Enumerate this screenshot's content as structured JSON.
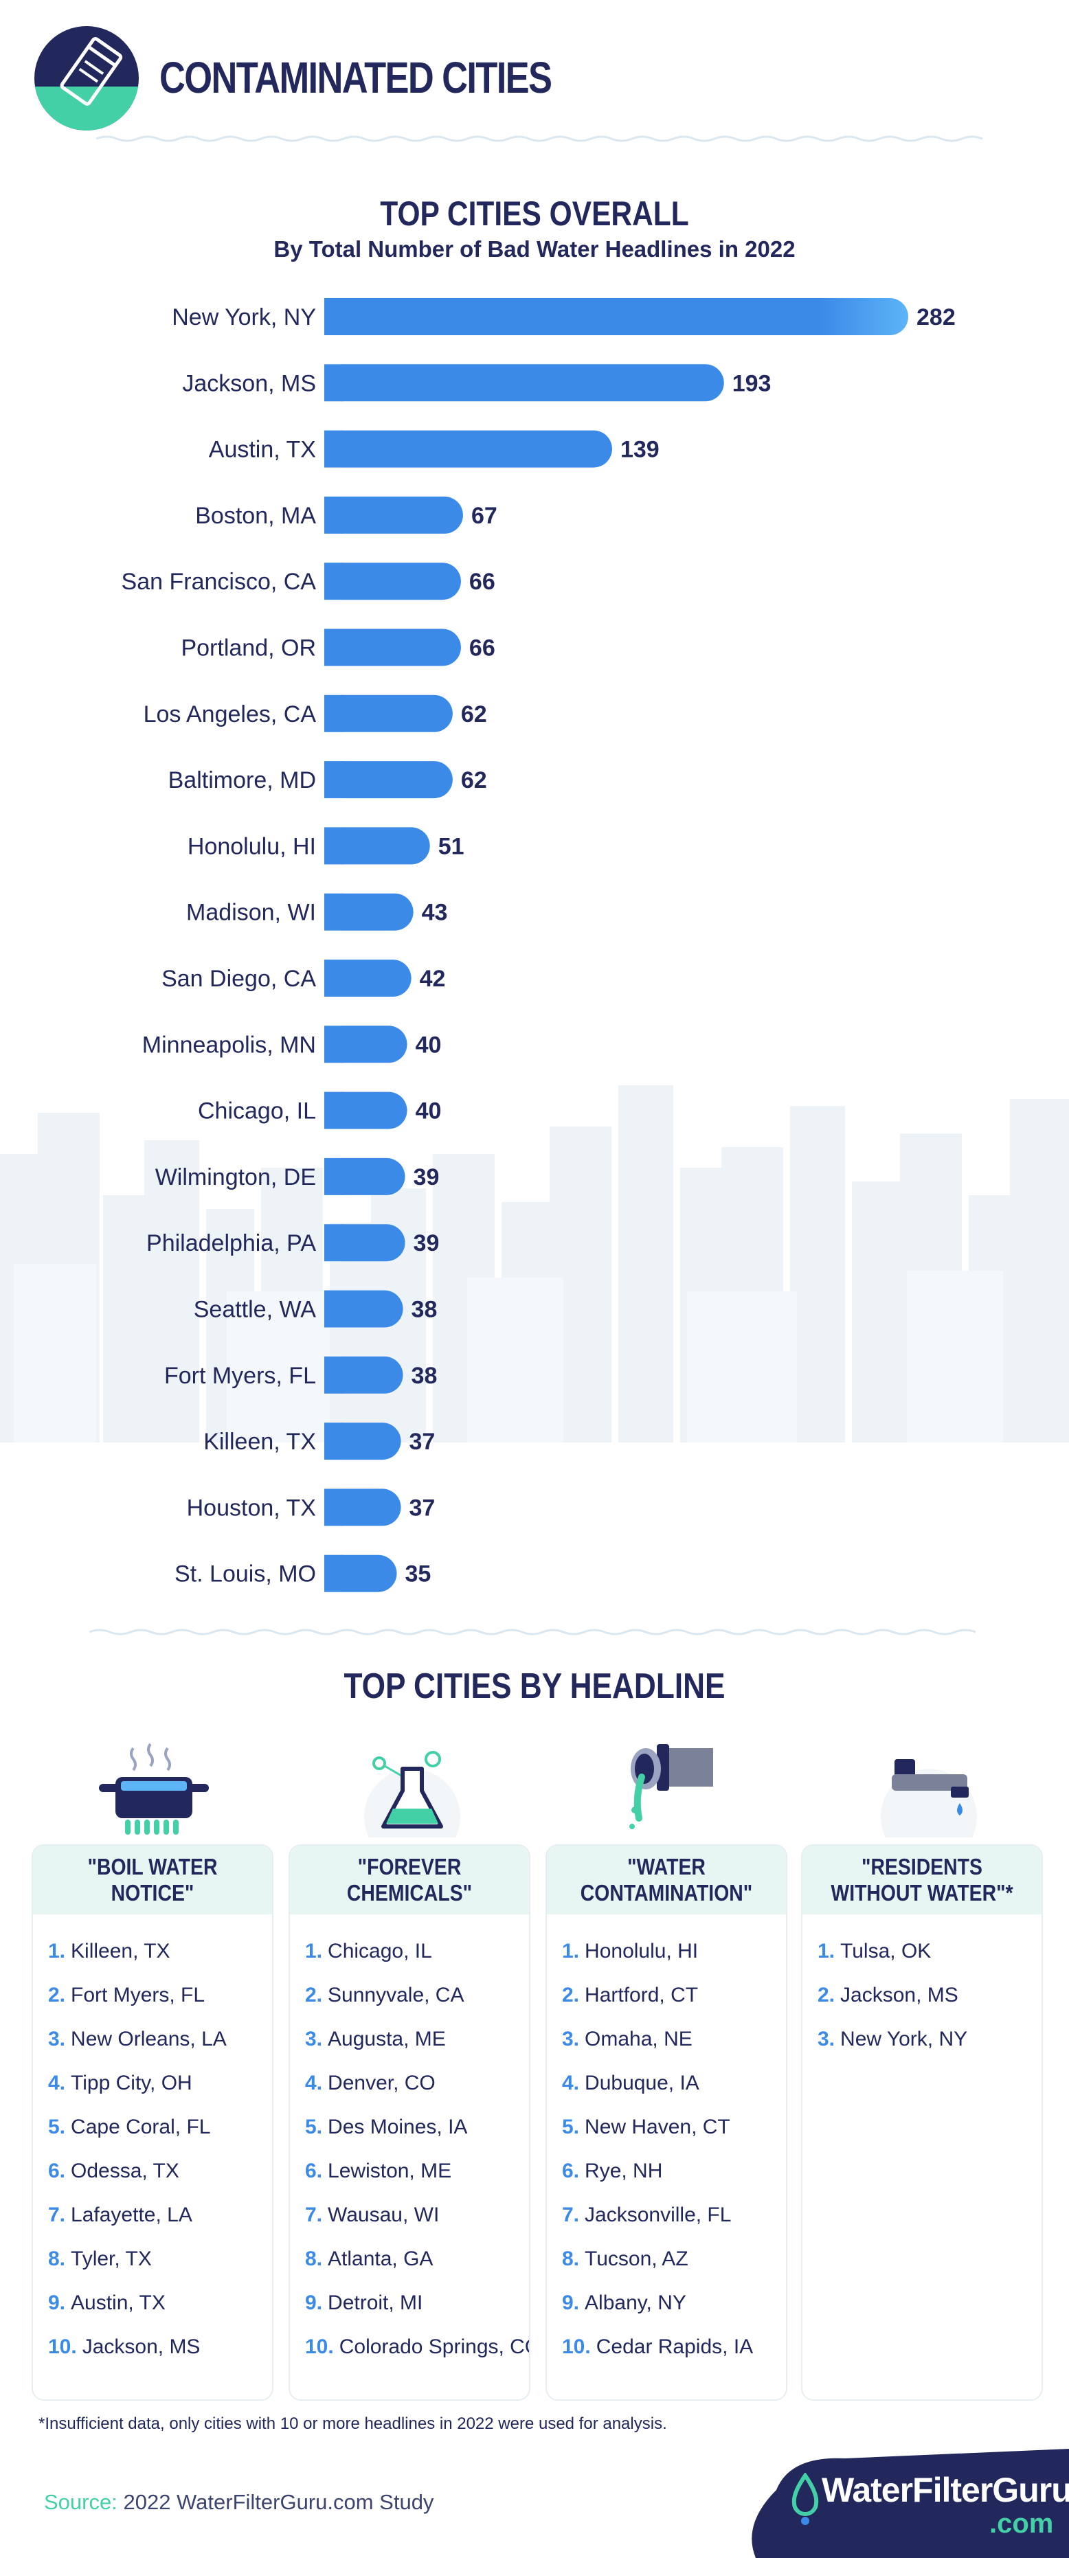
{
  "header": {
    "title": "CONTAMINATED CITIES",
    "icon": "contaminated-water-badge-icon"
  },
  "chart_data": {
    "type": "bar",
    "orientation": "horizontal",
    "title": "TOP CITIES OVERALL",
    "subtitle": "By Total Number of Bad Water Headlines in 2022",
    "categories": [
      "New York, NY",
      "Jackson, MS",
      "Austin, TX",
      "Boston, MA",
      "San Francisco, CA",
      "Portland, OR",
      "Los Angeles, CA",
      "Baltimore, MD",
      "Honolulu, HI",
      "Madison, WI",
      "San Diego, CA",
      "Minneapolis, MN",
      "Chicago, IL",
      "Wilmington, DE",
      "Philadelphia, PA",
      "Seattle, WA",
      "Fort Myers, FL",
      "Killeen, TX",
      "Houston, TX",
      "St. Louis, MO"
    ],
    "values": [
      282,
      193,
      139,
      67,
      66,
      66,
      62,
      62,
      51,
      43,
      42,
      40,
      40,
      39,
      39,
      38,
      38,
      37,
      37,
      35
    ],
    "xlim": [
      0,
      282
    ],
    "grid": false,
    "bar_color": "#3c8ae8",
    "bar_highlight_color": "#5db4f7"
  },
  "section2": {
    "title": "TOP CITIES BY HEADLINE",
    "cards": [
      {
        "icon": "boiling-pot-icon",
        "heading": "\"BOIL WATER NOTICE\"",
        "items": [
          "Killeen, TX",
          "Fort Myers, FL",
          "New Orleans, LA",
          "Tipp City, OH",
          "Cape Coral, FL",
          "Odessa, TX",
          "Lafayette, LA",
          "Tyler, TX",
          "Austin, TX",
          "Jackson, MS"
        ]
      },
      {
        "icon": "chemistry-flask-icon",
        "heading": "\"FOREVER CHEMICALS\"",
        "items": [
          "Chicago, IL",
          "Sunnyvale, CA",
          "Augusta, ME",
          "Denver, CO",
          "Des Moines, IA",
          "Lewiston, ME",
          "Wausau, WI",
          "Atlanta, GA",
          "Detroit, MI",
          "Colorado Springs, CO"
        ]
      },
      {
        "icon": "leaking-pipe-icon",
        "heading": "\"WATER CONTAMINATION\"",
        "items": [
          "Honolulu, HI",
          "Hartford, CT",
          "Omaha, NE",
          "Dubuque, IA",
          "New Haven, CT",
          "Rye, NH",
          "Jacksonville, FL",
          "Tucson, AZ",
          "Albany, NY",
          "Cedar Rapids, IA"
        ]
      },
      {
        "icon": "dripping-faucet-icon",
        "heading": "\"RESIDENTS WITHOUT WATER\"*",
        "items": [
          "Tulsa, OK",
          "Jackson, MS",
          "New York, NY"
        ]
      }
    ]
  },
  "footnote": "*Insufficient data, only cities with 10 or more headlines in 2022 were used for analysis.",
  "source": {
    "key": "Source:",
    "value": "2022 WaterFilterGuru.com Study"
  },
  "logo": {
    "text": "WaterFilterGuru",
    "suffix": ".com",
    "icon": "water-drop-logo-icon"
  },
  "colors": {
    "navy": "#22275c",
    "accent_blue": "#3c8ae8",
    "accent_green": "#44d0a6"
  }
}
